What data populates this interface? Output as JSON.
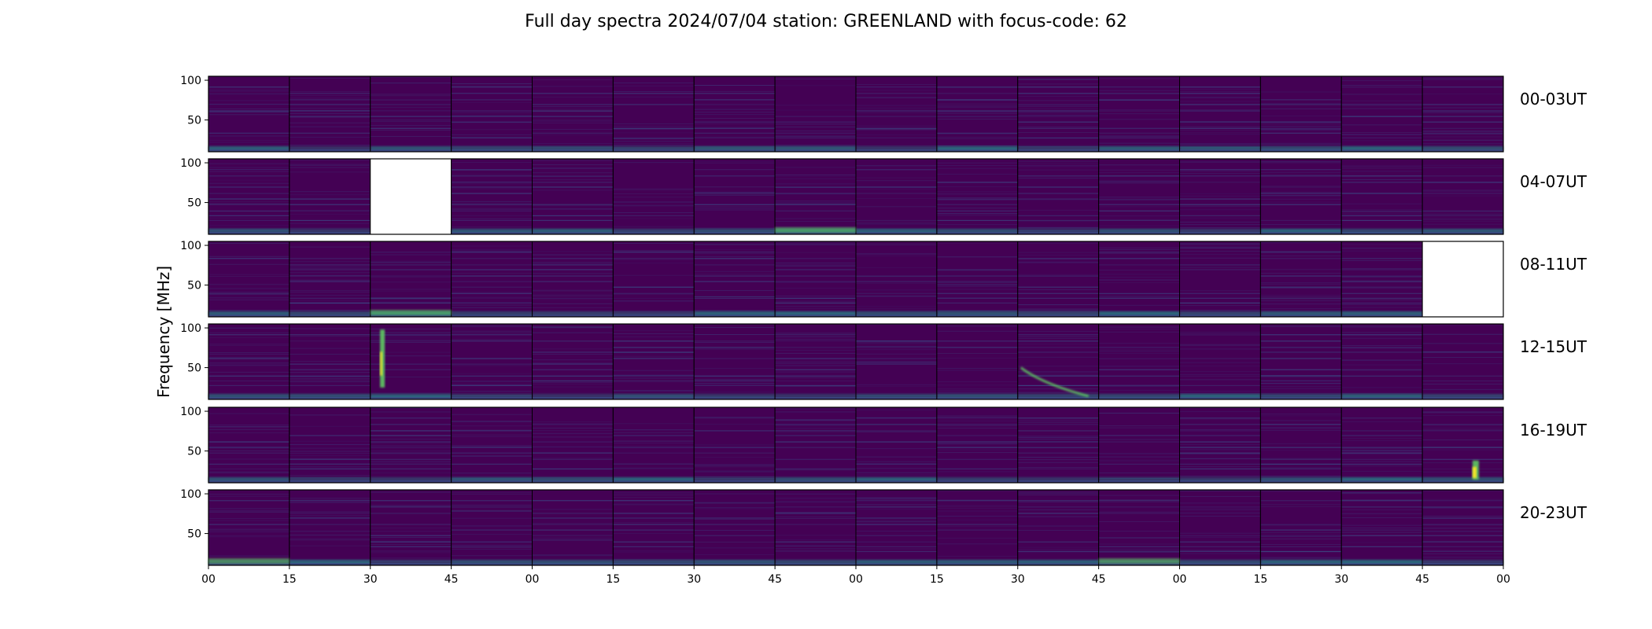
{
  "title": "Full day spectra 2024/07/04 station: GREENLAND with focus-code: 62",
  "chart_data": {
    "type": "heatmap",
    "title": "Full day spectra 2024/07/04 station: GREENLAND with focus-code: 62",
    "ylabel": "Frequency [MHz]",
    "xlabel": "",
    "yticks": [
      "100",
      "50"
    ],
    "ylim": [
      10,
      105
    ],
    "xticks": [
      "00",
      "15",
      "30",
      "45",
      "00",
      "15",
      "30",
      "45",
      "00",
      "15",
      "30",
      "45",
      "00",
      "15",
      "30",
      "45",
      "00"
    ],
    "panels_per_row": 16,
    "colormap": "viridis",
    "rows": [
      {
        "label": "00-03UT",
        "missing": []
      },
      {
        "label": "04-07UT",
        "missing": [
          2
        ]
      },
      {
        "label": "08-11UT",
        "missing": [
          15
        ]
      },
      {
        "label": "12-15UT",
        "missing": []
      },
      {
        "label": "16-19UT",
        "missing": []
      },
      {
        "label": "20-23UT",
        "missing": []
      }
    ]
  },
  "colors": {
    "background_dark": "#440154",
    "noise_mid": "#3b528b",
    "noise_high": "#21918c",
    "burst": "#5ec962",
    "peak": "#fde725"
  }
}
